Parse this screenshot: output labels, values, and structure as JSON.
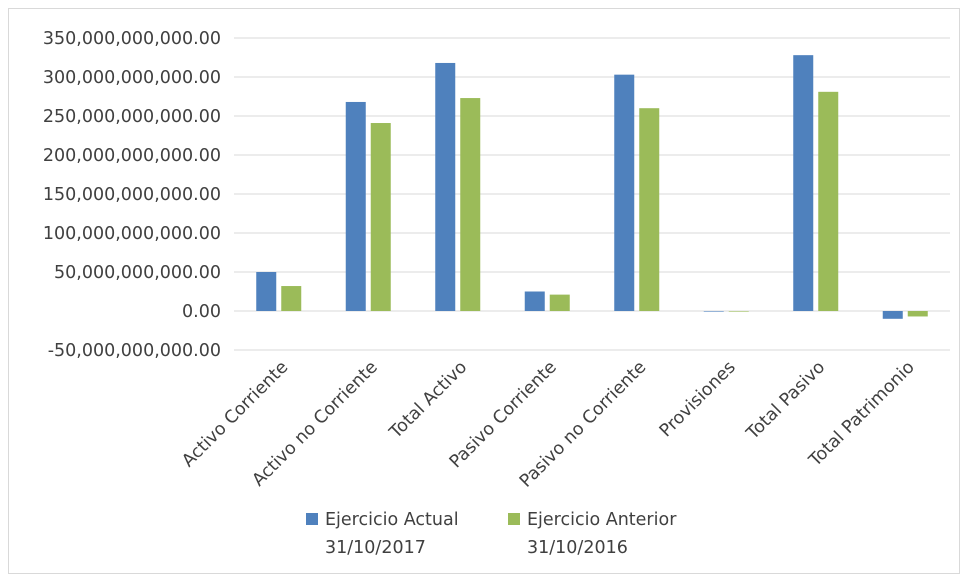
{
  "chart_data": {
    "type": "bar",
    "categories": [
      "Activo Corriente",
      "Activo no Corriente",
      "Total Activo",
      "Pasivo Corriente",
      "Pasivo no Corriente",
      "Provisiones",
      "Total Pasivo",
      "Total Patrimonio"
    ],
    "series": [
      {
        "name": "Ejercicio Actual 31/10/2017",
        "name_lines": [
          "Ejercicio Actual",
          "31/10/2017"
        ],
        "color": "#4f81bd",
        "values": [
          50000000000,
          268000000000,
          318000000000,
          25000000000,
          303000000000,
          0,
          328000000000,
          -10000000000
        ]
      },
      {
        "name": "Ejercicio Anterior 31/10/2016",
        "name_lines": [
          "Ejercicio Anterior",
          "31/10/2016"
        ],
        "color": "#9bbb59",
        "values": [
          32000000000,
          241000000000,
          273000000000,
          21000000000,
          260000000000,
          0,
          281000000000,
          -7000000000
        ]
      }
    ],
    "ylim": [
      -50000000000,
      350000000000
    ],
    "yticks": [
      "350,000,000,000.00",
      "300,000,000,000.00",
      "250,000,000,000.00",
      "200,000,000,000.00",
      "150,000,000,000.00",
      "100,000,000,000.00",
      "50,000,000,000.00",
      "0.00",
      "-50,000,000,000.00"
    ],
    "ytick_values": [
      350000000000,
      300000000000,
      250000000000,
      200000000000,
      150000000000,
      100000000000,
      50000000000,
      0,
      -50000000000
    ],
    "grid": true,
    "gridline_color": "#d9d9d9",
    "legend_position": "bottom",
    "title": "",
    "xlabel": "",
    "ylabel": ""
  }
}
